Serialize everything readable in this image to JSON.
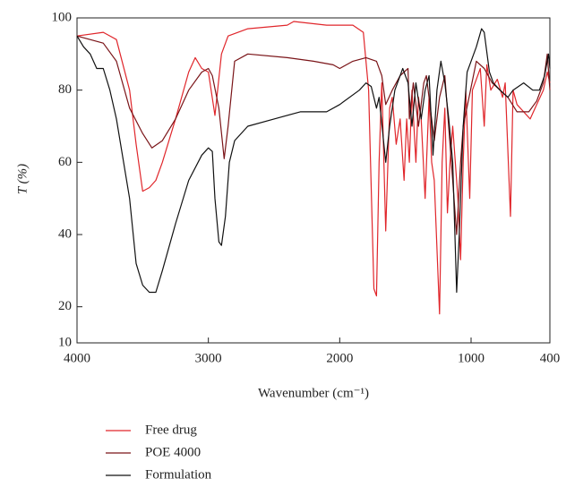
{
  "chart_data": {
    "type": "line",
    "ylabel": "T (%)",
    "xlabel": "Wavenumber (cm⁻¹)",
    "xlim": [
      4000,
      400
    ],
    "xticks": [
      4000,
      3000,
      2000,
      1000,
      400
    ],
    "ylim": [
      10,
      100
    ],
    "yticks": [
      10,
      20,
      40,
      60,
      80,
      100
    ],
    "series": [
      {
        "name": "Free drug",
        "color": "#e0262b",
        "x": [
          4000,
          3800,
          3700,
          3600,
          3550,
          3500,
          3450,
          3400,
          3350,
          3250,
          3150,
          3100,
          3050,
          3000,
          2950,
          2900,
          2850,
          2700,
          2400,
          2350,
          2100,
          1900,
          1820,
          1780,
          1740,
          1720,
          1700,
          1680,
          1650,
          1620,
          1600,
          1570,
          1540,
          1510,
          1490,
          1470,
          1450,
          1420,
          1400,
          1380,
          1350,
          1320,
          1300,
          1280,
          1240,
          1220,
          1200,
          1180,
          1160,
          1140,
          1100,
          1080,
          1060,
          1040,
          1010,
          990,
          960,
          930,
          900,
          880,
          850,
          800,
          760,
          740,
          700,
          680,
          650,
          600,
          550,
          500,
          450,
          420,
          400
        ],
        "values": [
          95,
          96,
          94,
          80,
          65,
          52,
          53,
          55,
          60,
          72,
          85,
          89,
          86,
          85,
          73,
          90,
          95,
          97,
          98,
          99,
          98,
          98,
          96,
          80,
          25,
          23,
          60,
          82,
          41,
          75,
          78,
          65,
          72,
          55,
          72,
          60,
          80,
          60,
          78,
          72,
          50,
          78,
          60,
          55,
          18,
          60,
          75,
          46,
          60,
          70,
          50,
          33,
          60,
          80,
          50,
          80,
          83,
          86,
          70,
          87,
          80,
          83,
          78,
          82,
          45,
          80,
          76,
          74,
          72,
          76,
          80,
          85,
          82
        ]
      },
      {
        "name": "POE 4000",
        "color": "#7a1418",
        "x": [
          4000,
          3800,
          3700,
          3600,
          3500,
          3430,
          3350,
          3250,
          3150,
          3050,
          3000,
          2970,
          2920,
          2880,
          2850,
          2800,
          2700,
          2400,
          2200,
          2050,
          2000,
          1900,
          1800,
          1720,
          1680,
          1650,
          1600,
          1540,
          1480,
          1470,
          1440,
          1400,
          1360,
          1340,
          1280,
          1240,
          1200,
          1150,
          1110,
          1080,
          1060,
          960,
          900,
          840,
          780,
          720,
          650,
          560,
          500,
          450,
          420,
          400
        ],
        "values": [
          95,
          93,
          88,
          75,
          68,
          64,
          66,
          72,
          80,
          85,
          86,
          84,
          75,
          61,
          70,
          88,
          90,
          89,
          88,
          87,
          86,
          88,
          89,
          88,
          84,
          76,
          80,
          84,
          86,
          72,
          82,
          70,
          82,
          84,
          66,
          78,
          84,
          60,
          40,
          60,
          70,
          88,
          86,
          82,
          80,
          78,
          74,
          74,
          77,
          82,
          90,
          80
        ]
      },
      {
        "name": "Formulation",
        "color": "#111111",
        "x": [
          4000,
          3950,
          3900,
          3850,
          3800,
          3750,
          3700,
          3600,
          3550,
          3500,
          3450,
          3400,
          3350,
          3250,
          3150,
          3050,
          3000,
          2970,
          2950,
          2920,
          2900,
          2870,
          2840,
          2800,
          2700,
          2500,
          2300,
          2100,
          2000,
          1850,
          1800,
          1760,
          1720,
          1700,
          1650,
          1620,
          1580,
          1520,
          1480,
          1450,
          1420,
          1380,
          1350,
          1320,
          1290,
          1260,
          1230,
          1200,
          1170,
          1140,
          1110,
          1090,
          1060,
          1030,
          1000,
          960,
          920,
          900,
          860,
          830,
          780,
          720,
          680,
          600,
          530,
          480,
          440,
          410,
          400
        ],
        "values": [
          95,
          92,
          90,
          86,
          86,
          80,
          72,
          50,
          32,
          26,
          24,
          24,
          30,
          43,
          55,
          62,
          64,
          63,
          50,
          38,
          37,
          45,
          60,
          66,
          70,
          72,
          74,
          74,
          76,
          80,
          82,
          81,
          75,
          78,
          60,
          70,
          80,
          86,
          82,
          70,
          82,
          72,
          80,
          84,
          62,
          80,
          88,
          82,
          72,
          60,
          24,
          40,
          70,
          85,
          88,
          92,
          97,
          96,
          85,
          82,
          80,
          78,
          80,
          82,
          80,
          80,
          84,
          90,
          86
        ]
      }
    ]
  }
}
